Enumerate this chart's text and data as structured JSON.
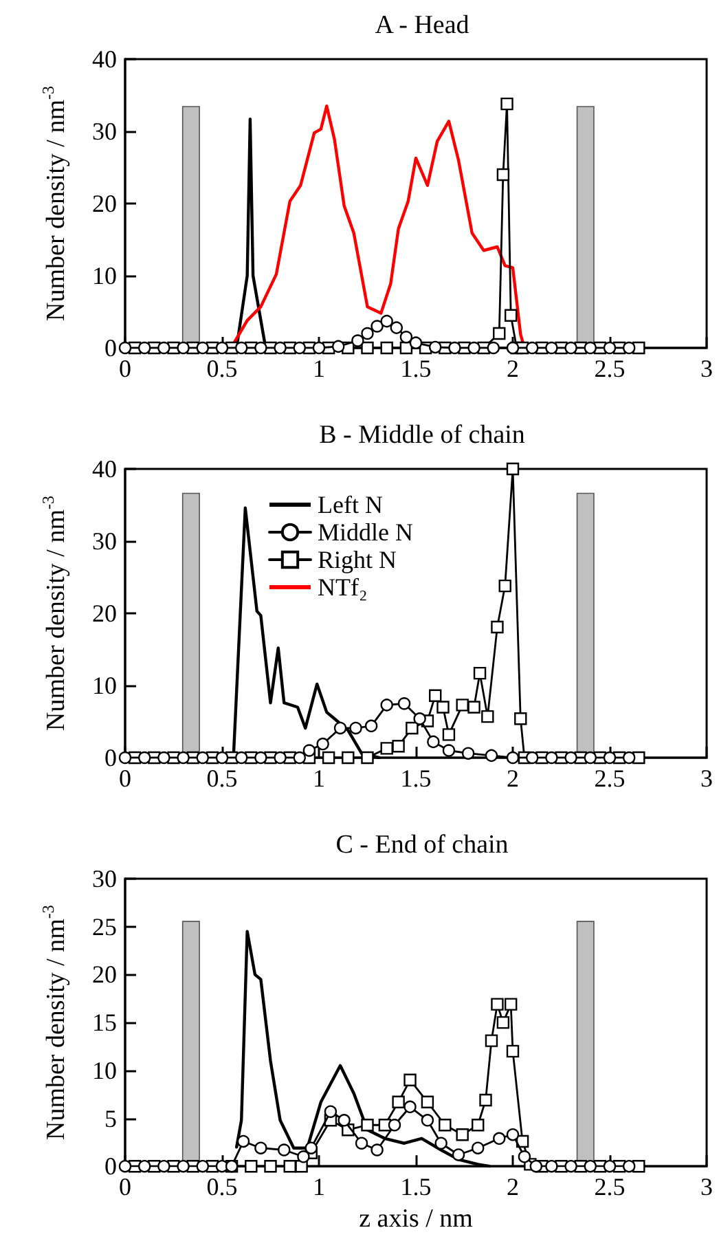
{
  "chart_data": [
    {
      "type": "line",
      "title": "A - Head",
      "ylabel": "Number density / nm$^{-3}$",
      "xlim": [
        0,
        3
      ],
      "xticks": [
        0,
        0.5,
        1,
        1.5,
        2,
        2.5,
        3
      ],
      "ylim": [
        0,
        40
      ],
      "yticks": [
        0,
        10,
        20,
        30,
        40
      ],
      "grid": false,
      "legend": false,
      "series": [
        {
          "type": "bar",
          "color": "#c0c0c0",
          "x": [
            0.34,
            2.375
          ],
          "values": [
            33.5,
            33.5
          ]
        },
        {
          "color": "#000000",
          "marker": "none",
          "x": [
            0.575,
            0.63,
            0.645,
            0.66,
            0.725
          ],
          "values": [
            0,
            10,
            31.7,
            10,
            0
          ]
        },
        {
          "color": "#000000",
          "marker": "circle",
          "x": [
            0,
            0.1,
            0.2,
            0.3,
            0.4,
            0.5,
            0.6,
            0.7,
            0.8,
            0.9,
            1,
            1.1,
            1.2,
            1.25,
            1.3,
            1.35,
            1.4,
            1.45,
            1.5,
            1.6,
            1.7,
            1.8,
            1.9,
            2,
            2.1,
            2.2,
            2.3,
            2.4,
            2.5,
            2.6
          ],
          "values": [
            0,
            0,
            0,
            0,
            0,
            0,
            0,
            0,
            0,
            0,
            0,
            0.2,
            1,
            2,
            3,
            3.7,
            2.8,
            1.5,
            0.7,
            0.1,
            0,
            0,
            0,
            0,
            0,
            0,
            0,
            0,
            0,
            0
          ]
        },
        {
          "color": "#000000",
          "marker": "square",
          "x": [
            0.05,
            0.15,
            0.25,
            0.35,
            0.45,
            0.55,
            0.65,
            0.75,
            0.85,
            0.95,
            1.05,
            1.15,
            1.25,
            1.35,
            1.45,
            1.55,
            1.65,
            1.75,
            1.85,
            1.93,
            1.95,
            1.97,
            1.99,
            2.02,
            2.05,
            2.15,
            2.25,
            2.35,
            2.45,
            2.55,
            2.65
          ],
          "values": [
            0,
            0,
            0,
            0,
            0,
            0,
            0,
            0,
            0,
            0,
            0,
            0,
            0,
            0,
            0,
            0,
            0,
            0,
            0,
            2,
            24,
            33.8,
            4.5,
            0,
            0,
            0,
            0,
            0,
            0,
            0,
            0
          ]
        },
        {
          "color": "#ff0000",
          "marker": "none",
          "x": [
            0.5,
            0.56,
            0.63,
            0.7,
            0.78,
            0.85,
            0.905,
            0.976,
            1.01,
            1.04,
            1.08,
            1.13,
            1.18,
            1.25,
            1.32,
            1.37,
            1.41,
            1.46,
            1.5,
            1.56,
            1.61,
            1.67,
            1.72,
            1.79,
            1.85,
            1.92,
            1.96,
            2,
            2.04,
            2.06
          ],
          "values": [
            0,
            0.6,
            3.8,
            5.7,
            10.2,
            20.3,
            22.5,
            29.8,
            30.3,
            33.5,
            28.9,
            19.7,
            15.9,
            5.7,
            4.8,
            8.9,
            16.5,
            20.3,
            26.3,
            22.5,
            28.6,
            31.4,
            26,
            15.9,
            13.5,
            14,
            11.4,
            11.1,
            1.9,
            0
          ]
        }
      ]
    },
    {
      "type": "line",
      "title": "B - Middle of chain",
      "ylabel": "Number density / nm$^{-3}$",
      "xlim": [
        0,
        3
      ],
      "xticks": [
        0,
        0.5,
        1,
        1.5,
        2,
        2.5,
        3
      ],
      "ylim": [
        0,
        40
      ],
      "yticks": [
        0,
        10,
        20,
        30,
        40
      ],
      "grid": false,
      "legend": "top",
      "series": [
        {
          "type": "bar",
          "color": "#c0c0c0",
          "x": [
            0.34,
            2.375
          ],
          "values": [
            36.7,
            36.7
          ]
        },
        {
          "name": "Left N",
          "color": "#000000",
          "marker": "none",
          "x": [
            0.56,
            0.62,
            0.68,
            0.7,
            0.75,
            0.79,
            0.82,
            0.89,
            0.93,
            0.99,
            1.04,
            1.08,
            1.15,
            1.22,
            1.31
          ],
          "values": [
            0.6,
            34.6,
            20.3,
            19.7,
            7.6,
            15.2,
            7.6,
            7,
            4.1,
            10.2,
            6.3,
            5.4,
            3.8,
            0.6,
            0
          ]
        },
        {
          "name": "Middle N",
          "color": "#000000",
          "marker": "circle",
          "x": [
            0,
            0.1,
            0.2,
            0.3,
            0.4,
            0.5,
            0.6,
            0.7,
            0.8,
            0.9,
            0.95,
            1.02,
            1.11,
            1.19,
            1.27,
            1.35,
            1.44,
            1.52,
            1.59,
            1.67,
            1.77,
            1.89,
            2,
            2.1,
            2.2,
            2.3,
            2.4,
            2.5,
            2.6
          ],
          "values": [
            0,
            0,
            0,
            0,
            0,
            0,
            0,
            0,
            0,
            0,
            1,
            1.9,
            4.1,
            4.1,
            4.4,
            7.3,
            7.5,
            5.4,
            2.2,
            1,
            0.6,
            0.3,
            0,
            0,
            0,
            0,
            0,
            0,
            0
          ]
        },
        {
          "name": "Right N",
          "color": "#000000",
          "marker": "square",
          "x": [
            0.05,
            0.15,
            0.25,
            0.35,
            0.45,
            0.55,
            0.65,
            0.75,
            0.85,
            0.95,
            1.05,
            1.15,
            1.25,
            1.35,
            1.41,
            1.48,
            1.56,
            1.6,
            1.64,
            1.67,
            1.74,
            1.8,
            1.83,
            1.87,
            1.92,
            1.96,
            2,
            2.04,
            2.06,
            2.15,
            2.25,
            2.35,
            2.45,
            2.55,
            2.65
          ],
          "values": [
            0,
            0,
            0,
            0,
            0,
            0,
            0,
            0,
            0,
            0,
            0,
            0,
            0,
            1.3,
            1.6,
            4.1,
            5.1,
            8.6,
            7,
            3.2,
            7.3,
            7,
            11.7,
            5.7,
            18.1,
            23.8,
            40,
            5.4,
            0,
            0,
            0,
            0,
            0,
            0,
            0
          ]
        },
        {
          "name": "NTf₂",
          "color": "#ff0000",
          "marker": "none"
        }
      ]
    },
    {
      "type": "line",
      "title": "C - End of chain",
      "xlabel": "z axis / nm",
      "ylabel": "Number density / nm$^{-3}$",
      "xlim": [
        0,
        3
      ],
      "xticks": [
        0,
        0.5,
        1,
        1.5,
        2,
        2.5,
        3
      ],
      "ylim": [
        0,
        30
      ],
      "yticks": [
        0,
        5,
        10,
        15,
        20,
        25,
        30
      ],
      "grid": false,
      "legend": false,
      "series": [
        {
          "type": "bar",
          "color": "#c0c0c0",
          "x": [
            0.34,
            2.375
          ],
          "values": [
            25.6,
            25.6
          ]
        },
        {
          "color": "#000000",
          "marker": "none",
          "x": [
            0.575,
            0.6,
            0.63,
            0.67,
            0.7,
            0.75,
            0.8,
            0.87,
            0.94,
            1.01,
            1.11,
            1.18,
            1.25,
            1.34,
            1.44,
            1.53,
            1.63,
            1.72,
            1.82,
            1.88
          ],
          "values": [
            2,
            4.8,
            24.5,
            20,
            19.5,
            11,
            4.8,
            1.9,
            1.9,
            6.7,
            10.5,
            7.6,
            3.8,
            2.9,
            2.4,
            2.9,
            1.7,
            0.7,
            0.2,
            0
          ]
        },
        {
          "color": "#000000",
          "marker": "circle",
          "x": [
            0,
            0.1,
            0.2,
            0.3,
            0.4,
            0.5,
            0.55,
            0.61,
            0.7,
            0.82,
            0.92,
            0.96,
            1.06,
            1.13,
            1.22,
            1.3,
            1.39,
            1.47,
            1.56,
            1.63,
            1.72,
            1.82,
            1.93,
            2,
            2.06,
            2.12,
            2.2,
            2.3,
            2.4,
            2.5,
            2.6
          ],
          "values": [
            0,
            0,
            0,
            0,
            0,
            0,
            0,
            2.6,
            1.9,
            1.7,
            1,
            1.9,
            5.7,
            4.8,
            2.4,
            1.7,
            4.3,
            6.2,
            4.8,
            2.4,
            1.2,
            1.9,
            2.9,
            3.3,
            1,
            0,
            0,
            0,
            0,
            0,
            0
          ]
        },
        {
          "color": "#000000",
          "marker": "square",
          "x": [
            0.05,
            0.15,
            0.25,
            0.35,
            0.45,
            0.55,
            0.65,
            0.75,
            0.85,
            0.91,
            0.96,
            1.06,
            1.15,
            1.25,
            1.34,
            1.41,
            1.47,
            1.56,
            1.65,
            1.74,
            1.82,
            1.86,
            1.89,
            1.92,
            1.95,
            1.99,
            2,
            2.05,
            2.09,
            2.15,
            2.25,
            2.35,
            2.45,
            2.55,
            2.65
          ],
          "values": [
            0,
            0,
            0,
            0,
            0,
            0,
            0,
            0,
            0,
            0,
            1.4,
            4.8,
            3.8,
            4.3,
            4.3,
            6.7,
            9,
            6.7,
            4.3,
            3.3,
            4.3,
            6.9,
            13.1,
            16.9,
            15,
            16.9,
            12,
            2.6,
            0.2,
            0,
            0,
            0,
            0,
            0,
            0
          ]
        }
      ]
    }
  ]
}
